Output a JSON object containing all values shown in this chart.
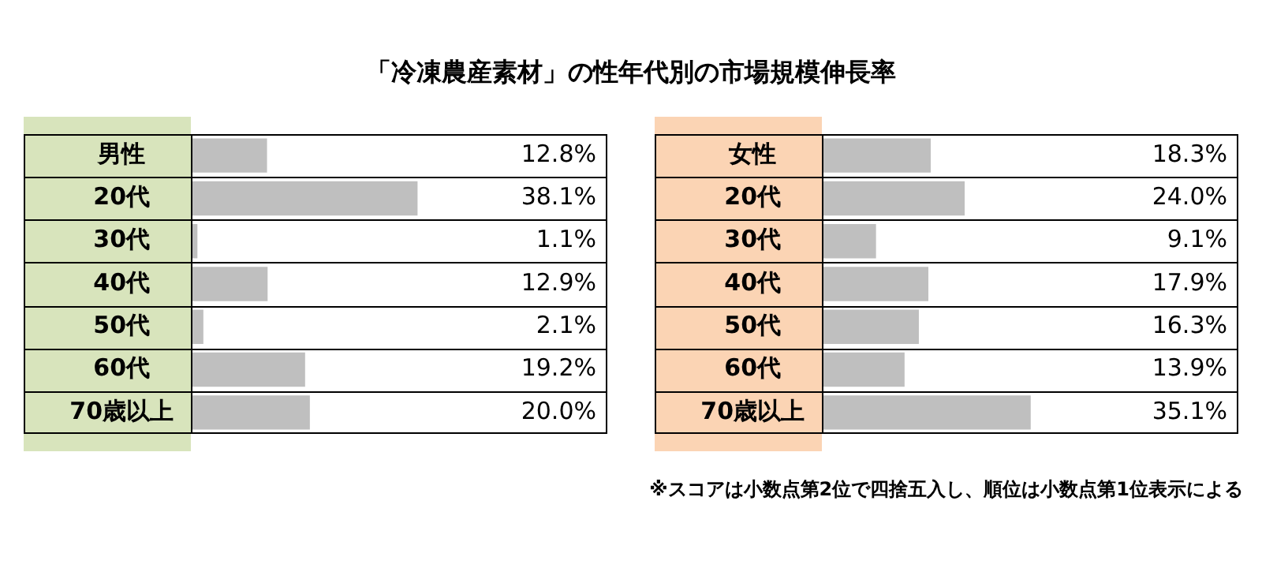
{
  "chart_data": [
    {
      "type": "bar",
      "orientation": "horizontal",
      "title": "「冷凍農産素材」の性年代別の市場規模伸長率",
      "categories": [
        "男性",
        "20代",
        "30代",
        "40代",
        "50代",
        "60代",
        "70歳以上"
      ],
      "values": [
        12.8,
        38.1,
        1.1,
        12.9,
        2.1,
        19.2,
        20.0
      ],
      "color": "#bfbfbf",
      "value_labels": [
        "12.8%",
        "38.1%",
        "1.1%",
        "12.9%",
        "2.1%",
        "19.2%",
        "20.0%"
      ],
      "xlim": [
        0,
        70
      ],
      "tick_labels": "y"
    },
    {
      "type": "bar",
      "orientation": "horizontal",
      "categories": [
        "女性",
        "20代",
        "30代",
        "40代",
        "50代",
        "60代",
        "70歳以上"
      ],
      "values": [
        18.3,
        24.0,
        9.1,
        17.9,
        16.3,
        13.9,
        35.1
      ],
      "color": "#bfbfbf",
      "value_labels": [
        "18.3%",
        "24.0%",
        "9.1%",
        "17.9%",
        "16.3%",
        "13.9%",
        "35.1%"
      ],
      "xlim": [
        0,
        70
      ],
      "tick_labels": "y",
      "annotations": [
        "※スコアは小数点第2位で四捨五入し、順位は小数点第1位表示による"
      ]
    }
  ]
}
